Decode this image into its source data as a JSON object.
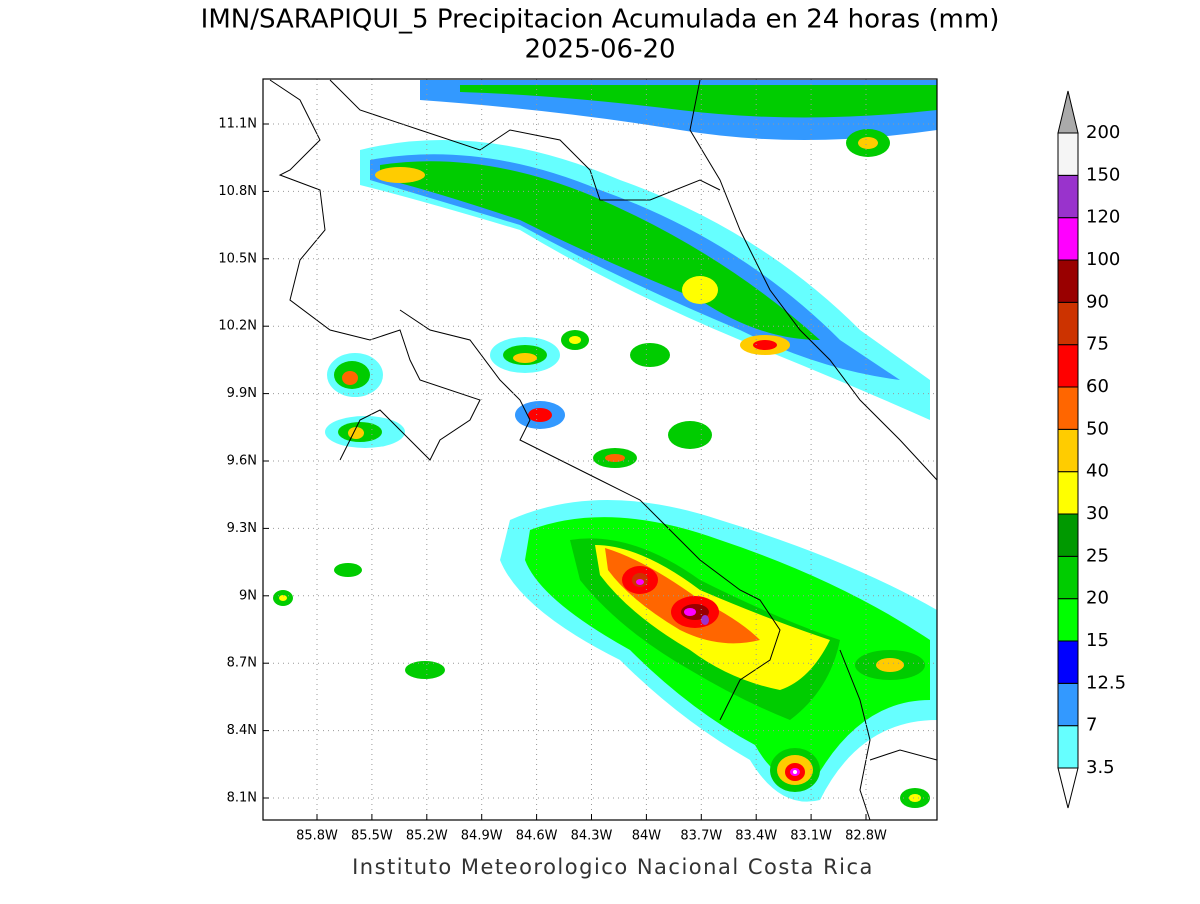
{
  "title": "IMN/SARAPIQUI_5 Precipitacion Acumulada en 24 horas (mm)",
  "subtitle": "2025-06-20",
  "footer": "Instituto Meteorologico Nacional Costa Rica",
  "map": {
    "lat_labels": [
      "11.1N",
      "10.8N",
      "10.5N",
      "10.2N",
      "9.9N",
      "9.6N",
      "9.3N",
      "9N",
      "8.7N",
      "8.4N",
      "8.1N"
    ],
    "lon_labels": [
      "85.8W",
      "85.5W",
      "85.2W",
      "84.9W",
      "84.6W",
      "84.3W",
      "84W",
      "83.7W",
      "83.4W",
      "83.1W",
      "82.8W"
    ]
  },
  "colorbar": {
    "below_color": "#ffffff",
    "levels": [
      {
        "value": 3.5,
        "color": "#66ffff"
      },
      {
        "value": 7,
        "color": "#3399ff"
      },
      {
        "value": 12.5,
        "color": "#0000ff"
      },
      {
        "value": 15,
        "color": "#00ff00"
      },
      {
        "value": 20,
        "color": "#00cc00"
      },
      {
        "value": 25,
        "color": "#009900"
      },
      {
        "value": 30,
        "color": "#ffff00"
      },
      {
        "value": 40,
        "color": "#ffcc00"
      },
      {
        "value": 50,
        "color": "#ff6600"
      },
      {
        "value": 60,
        "color": "#ff0000"
      },
      {
        "value": 75,
        "color": "#cc3300"
      },
      {
        "value": 90,
        "color": "#990000"
      },
      {
        "value": 100,
        "color": "#ff00ff"
      },
      {
        "value": 120,
        "color": "#9933cc"
      },
      {
        "value": 150,
        "color": "#f5f5f5"
      },
      {
        "value": 200,
        "color": "#aaaaaa"
      }
    ]
  }
}
